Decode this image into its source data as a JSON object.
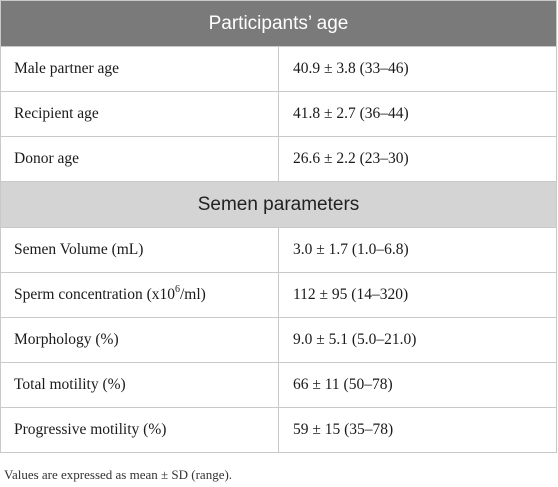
{
  "sections": [
    {
      "title": "Participants’ age",
      "rows": [
        {
          "label": "Male partner age",
          "value": "40.9 ± 3.8 (33–46)"
        },
        {
          "label": "Recipient age",
          "value": "41.8 ± 2.7 (36–44)"
        },
        {
          "label": "Donor age",
          "value": "26.6 ± 2.2 (23–30)"
        }
      ]
    },
    {
      "title": "Semen parameters",
      "rows": [
        {
          "label": "Semen Volume (mL)",
          "value": "3.0 ± 1.7 (1.0–6.8)"
        },
        {
          "label_pre": "Sperm concentration (x10",
          "label_sup": "6",
          "label_post": "/ml)",
          "value": "112 ± 95 (14–320)"
        },
        {
          "label": "Morphology (%)",
          "value": "9.0 ± 5.1 (5.0–21.0)"
        },
        {
          "label": "Total motility (%)",
          "value": "66 ± 11 (50–78)"
        },
        {
          "label": "Progressive motility (%)",
          "value": "59 ± 15 (35–78)"
        }
      ]
    }
  ],
  "footnote": "Values are expressed as mean ± SD (range)."
}
